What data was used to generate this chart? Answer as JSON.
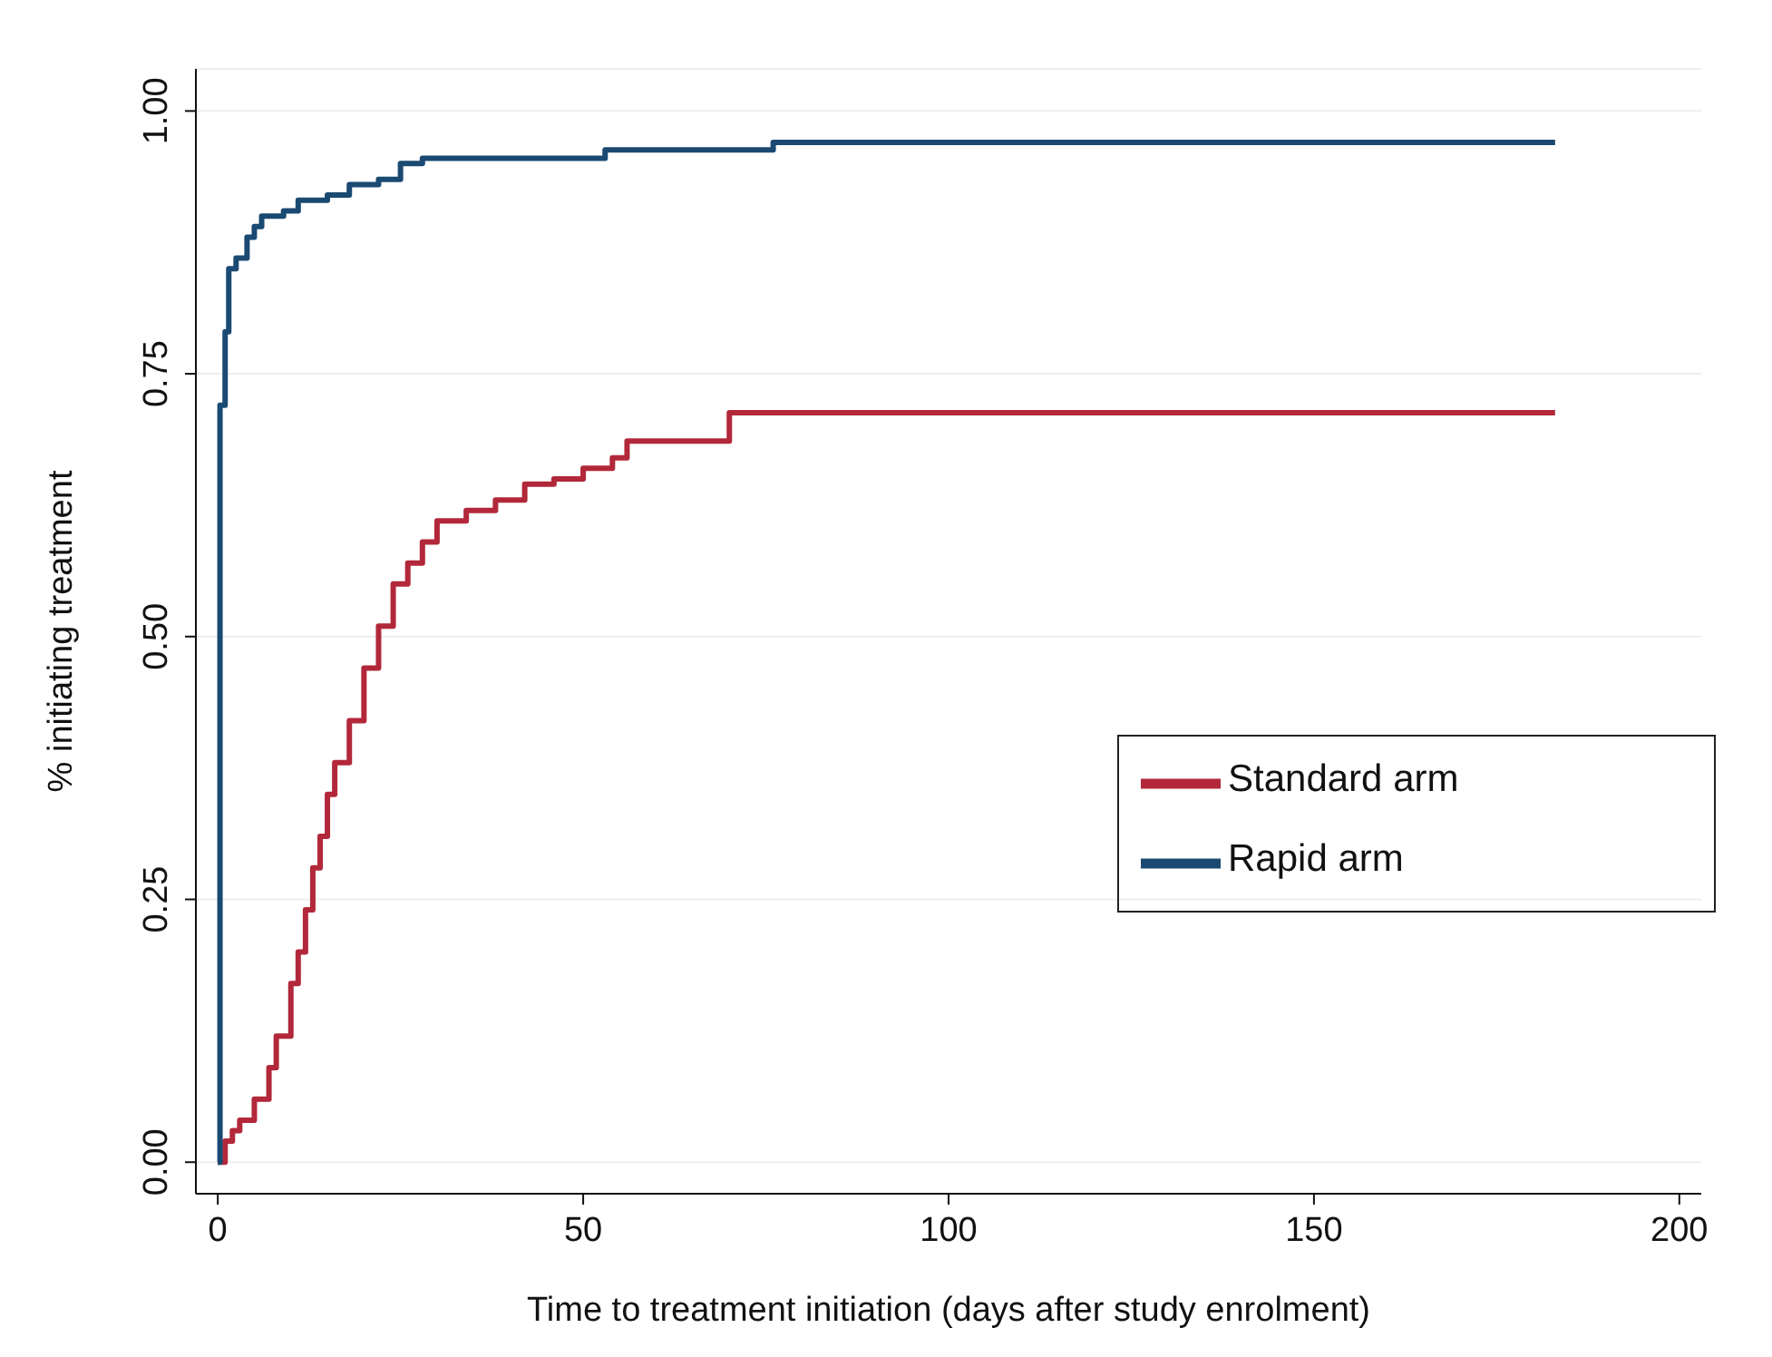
{
  "chart_data": {
    "type": "step",
    "xlabel": "Time to treatment initiation (days after study enrolment)",
    "ylabel": "% initiating treatment",
    "xlim": [
      -3,
      203
    ],
    "xticks": [
      0,
      50,
      100,
      150,
      200
    ],
    "ylim": [
      -0.03,
      1.04
    ],
    "yticks": [
      {
        "value": 0,
        "label": "0.00"
      },
      {
        "value": 0.25,
        "label": "0.25"
      },
      {
        "value": 0.5,
        "label": "0.50"
      },
      {
        "value": 0.75,
        "label": "0.75"
      },
      {
        "value": 1,
        "label": "1.00"
      }
    ],
    "grid": "y",
    "legend": "right",
    "marker": "none",
    "line_style": "solid",
    "series": [
      {
        "name": "Standard arm",
        "color": "#b2283a",
        "x": [
          0,
          1,
          2,
          3,
          5,
          7,
          8,
          10,
          11,
          12,
          13,
          14,
          15,
          16,
          18,
          20,
          22,
          24,
          26,
          28,
          30,
          34,
          38,
          42,
          46,
          50,
          54,
          56,
          70,
          183
        ],
        "values": [
          0,
          0.02,
          0.03,
          0.04,
          0.06,
          0.09,
          0.12,
          0.17,
          0.2,
          0.24,
          0.28,
          0.31,
          0.35,
          0.38,
          0.42,
          0.47,
          0.51,
          0.55,
          0.57,
          0.59,
          0.61,
          0.62,
          0.63,
          0.645,
          0.65,
          0.66,
          0.67,
          0.686,
          0.713,
          0.713
        ]
      },
      {
        "name": "Rapid arm",
        "color": "#1a4a72",
        "x": [
          0,
          0.3,
          1,
          1.5,
          2.5,
          4,
          5,
          6,
          9,
          11,
          15,
          18,
          22,
          25,
          28,
          53,
          76,
          183
        ],
        "values": [
          0,
          0.72,
          0.79,
          0.85,
          0.86,
          0.88,
          0.89,
          0.9,
          0.905,
          0.915,
          0.92,
          0.93,
          0.935,
          0.95,
          0.955,
          0.963,
          0.97,
          0.97
        ]
      }
    ]
  }
}
